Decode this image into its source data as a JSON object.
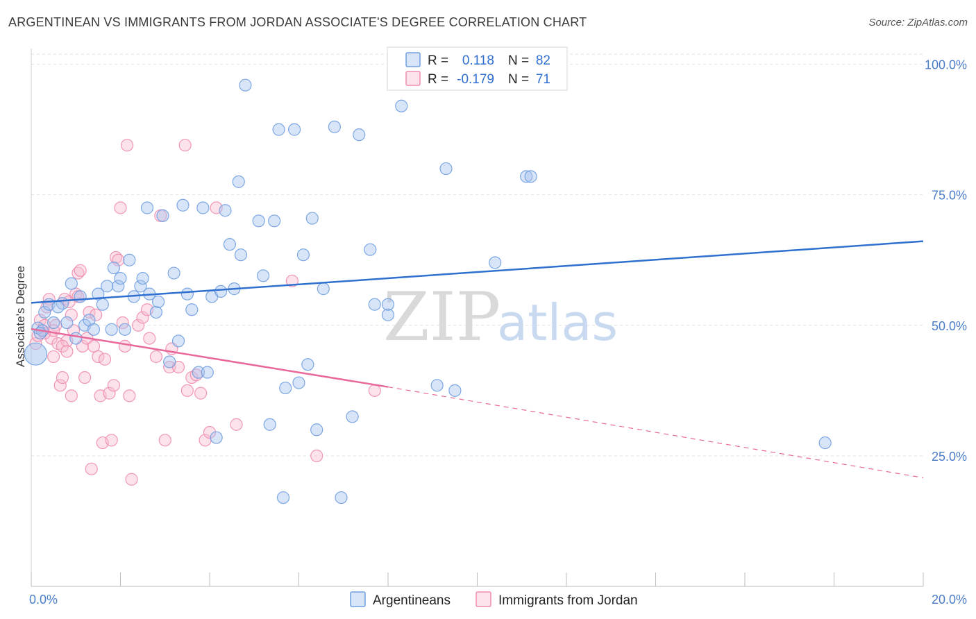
{
  "header": {
    "title": "ARGENTINEAN VS IMMIGRANTS FROM JORDAN ASSOCIATE'S DEGREE CORRELATION CHART",
    "source": "Source: ZipAtlas.com"
  },
  "watermark": {
    "zip": "ZIP",
    "atlas": "atlas"
  },
  "legend_top": [
    {
      "r_label": "R =",
      "r_value": "0.118",
      "n_label": "N =",
      "n_value": "82",
      "color": "#6f9fe0"
    },
    {
      "r_label": "R =",
      "r_value": "-0.179",
      "n_label": "N =",
      "n_value": "71",
      "color": "#f08cb0"
    }
  ],
  "legend_bottom": [
    {
      "label": "Argentineans",
      "color": "#6f9fe0"
    },
    {
      "label": "Immigrants from Jordan",
      "color": "#f08cb0"
    }
  ],
  "chart_data": {
    "type": "scatter",
    "title": "ARGENTINEAN VS IMMIGRANTS FROM JORDAN ASSOCIATE'S DEGREE CORRELATION CHART",
    "xlabel": "",
    "ylabel": "Associate's Degree",
    "xlim": [
      0,
      20
    ],
    "ylim": [
      0,
      103
    ],
    "x_tick_labels": [
      "0.0%",
      "20.0%"
    ],
    "y_ticks": [
      25,
      50,
      75,
      100
    ],
    "y_tick_labels": [
      "25.0%",
      "50.0%",
      "75.0%",
      "100.0%"
    ],
    "grid": true,
    "legend_position": "top-center",
    "series": [
      {
        "name": "Argentineans",
        "color": "#6f9fe0",
        "trend": {
          "x": [
            0,
            20
          ],
          "y": [
            54.3,
            66.1
          ],
          "dashed_from": null
        },
        "points": [
          [
            0.1,
            44.5
          ],
          [
            0.15,
            49.5
          ],
          [
            0.25,
            49
          ],
          [
            0.3,
            52.5
          ],
          [
            0.4,
            54
          ],
          [
            0.5,
            50.5
          ],
          [
            0.7,
            54.2
          ],
          [
            0.8,
            50.5
          ],
          [
            0.9,
            58
          ],
          [
            1.0,
            47.5
          ],
          [
            1.1,
            55.5
          ],
          [
            1.2,
            50
          ],
          [
            1.3,
            51
          ],
          [
            1.4,
            49.2
          ],
          [
            1.5,
            56
          ],
          [
            1.6,
            54
          ],
          [
            1.7,
            57.5
          ],
          [
            1.8,
            49.2
          ],
          [
            1.85,
            61
          ],
          [
            1.95,
            57.5
          ],
          [
            2.0,
            59
          ],
          [
            2.1,
            49.2
          ],
          [
            2.2,
            62.5
          ],
          [
            2.3,
            55.5
          ],
          [
            2.45,
            57.5
          ],
          [
            2.5,
            59
          ],
          [
            2.6,
            72.5
          ],
          [
            2.65,
            56
          ],
          [
            2.8,
            52.5
          ],
          [
            2.85,
            54.5
          ],
          [
            2.95,
            71
          ],
          [
            3.1,
            43
          ],
          [
            3.2,
            60
          ],
          [
            3.3,
            47
          ],
          [
            3.4,
            73
          ],
          [
            3.5,
            56
          ],
          [
            3.6,
            53
          ],
          [
            3.75,
            41
          ],
          [
            3.85,
            72.5
          ],
          [
            3.95,
            41
          ],
          [
            4.05,
            55.5
          ],
          [
            4.15,
            28.5
          ],
          [
            4.25,
            56.5
          ],
          [
            4.35,
            72
          ],
          [
            4.45,
            65.5
          ],
          [
            4.55,
            57
          ],
          [
            4.65,
            77.5
          ],
          [
            4.7,
            63.5
          ],
          [
            4.8,
            96
          ],
          [
            5.1,
            70
          ],
          [
            5.2,
            59.5
          ],
          [
            5.35,
            31
          ],
          [
            5.45,
            70
          ],
          [
            5.55,
            87.5
          ],
          [
            5.65,
            17
          ],
          [
            5.7,
            38
          ],
          [
            5.9,
            87.5
          ],
          [
            6.0,
            39
          ],
          [
            6.1,
            63.5
          ],
          [
            6.2,
            42.5
          ],
          [
            6.3,
            70.5
          ],
          [
            6.4,
            30
          ],
          [
            6.55,
            57
          ],
          [
            6.8,
            88
          ],
          [
            6.95,
            17
          ],
          [
            7.2,
            32.5
          ],
          [
            7.35,
            86.5
          ],
          [
            7.6,
            64.5
          ],
          [
            7.7,
            54
          ],
          [
            8.0,
            52
          ],
          [
            8.0,
            54
          ],
          [
            8.3,
            92
          ],
          [
            8.4,
            101
          ],
          [
            9.1,
            38.5
          ],
          [
            9.3,
            80
          ],
          [
            9.5,
            37.5
          ],
          [
            10.4,
            62
          ],
          [
            11.1,
            78.5
          ],
          [
            11.2,
            78.5
          ],
          [
            17.8,
            27.5
          ],
          [
            0.2,
            48.5
          ],
          [
            0.6,
            53.5
          ]
        ]
      },
      {
        "name": "Immigrants from Jordan",
        "color": "#f08cb0",
        "trend": {
          "x": [
            0,
            8.0,
            20
          ],
          "y": [
            49.3,
            38.2,
            20.8
          ],
          "dashed_from": 8.0
        },
        "points": [
          [
            0.1,
            46.5
          ],
          [
            0.15,
            48
          ],
          [
            0.2,
            51
          ],
          [
            0.25,
            49
          ],
          [
            0.3,
            50
          ],
          [
            0.35,
            53.5
          ],
          [
            0.4,
            55
          ],
          [
            0.45,
            47.5
          ],
          [
            0.5,
            44
          ],
          [
            0.55,
            50
          ],
          [
            0.6,
            46.5
          ],
          [
            0.65,
            38.5
          ],
          [
            0.7,
            40
          ],
          [
            0.75,
            55
          ],
          [
            0.8,
            47
          ],
          [
            0.85,
            54.5
          ],
          [
            0.9,
            36.5
          ],
          [
            0.95,
            49
          ],
          [
            1.0,
            56
          ],
          [
            1.05,
            60
          ],
          [
            1.1,
            60.5
          ],
          [
            1.15,
            46
          ],
          [
            1.2,
            40
          ],
          [
            1.25,
            47.5
          ],
          [
            1.3,
            52.5
          ],
          [
            1.35,
            22.5
          ],
          [
            1.4,
            46
          ],
          [
            1.45,
            52
          ],
          [
            1.5,
            44
          ],
          [
            1.55,
            36.5
          ],
          [
            1.6,
            27.5
          ],
          [
            1.65,
            43.5
          ],
          [
            1.75,
            37
          ],
          [
            1.8,
            28
          ],
          [
            1.85,
            38.5
          ],
          [
            1.9,
            63
          ],
          [
            1.95,
            62.5
          ],
          [
            2.0,
            72.5
          ],
          [
            2.05,
            50.5
          ],
          [
            2.1,
            46
          ],
          [
            2.15,
            84.5
          ],
          [
            2.2,
            36.5
          ],
          [
            2.25,
            20.5
          ],
          [
            2.4,
            50
          ],
          [
            2.5,
            51.5
          ],
          [
            2.6,
            53
          ],
          [
            2.65,
            47.5
          ],
          [
            2.8,
            44
          ],
          [
            2.9,
            71
          ],
          [
            3.0,
            28
          ],
          [
            3.1,
            42
          ],
          [
            3.15,
            45.5
          ],
          [
            3.3,
            42
          ],
          [
            3.45,
            84.5
          ],
          [
            3.5,
            37.5
          ],
          [
            3.6,
            40
          ],
          [
            3.7,
            40.5
          ],
          [
            3.8,
            37
          ],
          [
            3.9,
            28
          ],
          [
            4.0,
            29.5
          ],
          [
            4.15,
            72.5
          ],
          [
            4.6,
            31
          ],
          [
            5.85,
            58.5
          ],
          [
            6.4,
            25
          ],
          [
            7.7,
            37.5
          ],
          [
            0.3,
            48.5
          ],
          [
            0.5,
            49
          ],
          [
            0.7,
            46
          ],
          [
            0.8,
            45
          ],
          [
            0.9,
            52
          ],
          [
            1.05,
            55.5
          ]
        ]
      }
    ]
  }
}
